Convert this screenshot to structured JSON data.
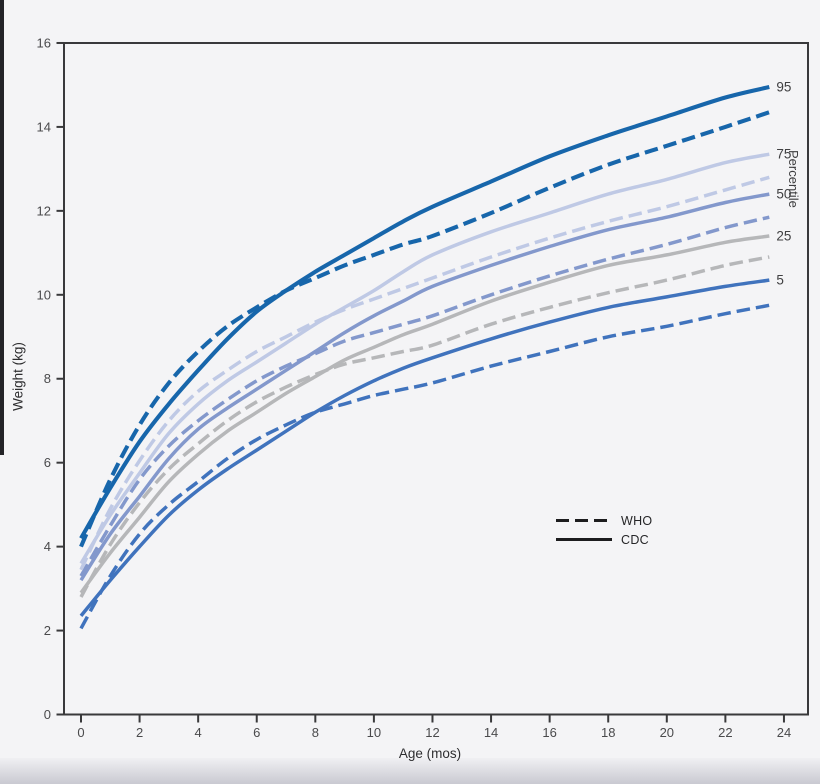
{
  "chart_data": {
    "type": "line",
    "title": "",
    "xlabel": "Age (mos)",
    "ylabel": "Weight (kg)",
    "right_axis_title": "Percentile",
    "x_ticks": [
      0,
      2,
      4,
      6,
      8,
      10,
      12,
      14,
      16,
      18,
      20,
      22,
      24
    ],
    "y_ticks": [
      0,
      2,
      4,
      6,
      8,
      10,
      12,
      14,
      16
    ],
    "xlim": [
      0,
      24.8
    ],
    "ylim": [
      0,
      16
    ],
    "grid": false,
    "legend": [
      {
        "label": "WHO",
        "style": "dashed"
      },
      {
        "label": "CDC",
        "style": "solid"
      }
    ],
    "percentile_labels": [
      "95",
      "75",
      "50",
      "25",
      "5"
    ],
    "x": [
      0,
      1,
      2,
      3,
      4,
      5,
      6,
      7,
      8,
      9,
      10,
      11,
      12,
      14,
      16,
      18,
      20,
      22,
      23.5
    ],
    "series": [
      {
        "name": "WHO 25th",
        "percentile": "25",
        "source": "WHO",
        "style": "dashed",
        "color": "#b6b7b9",
        "values": [
          2.8,
          4.05,
          5.05,
          5.85,
          6.45,
          7.0,
          7.45,
          7.8,
          8.1,
          8.35,
          8.5,
          8.65,
          8.8,
          9.3,
          9.7,
          10.05,
          10.35,
          10.7,
          10.9
        ]
      },
      {
        "name": "CDC 25th",
        "percentile": "25",
        "source": "CDC",
        "style": "solid",
        "color": "#b6b7b9",
        "values": [
          2.9,
          3.85,
          4.7,
          5.55,
          6.2,
          6.75,
          7.2,
          7.65,
          8.05,
          8.45,
          8.75,
          9.05,
          9.3,
          9.85,
          10.3,
          10.7,
          10.95,
          11.25,
          11.4
        ]
      },
      {
        "name": "WHO 50th",
        "percentile": "50",
        "source": "WHO",
        "style": "dashed",
        "color": "#8398cc",
        "values": [
          3.3,
          4.5,
          5.6,
          6.4,
          7.0,
          7.5,
          7.95,
          8.3,
          8.6,
          8.9,
          9.1,
          9.3,
          9.5,
          10.0,
          10.45,
          10.85,
          11.2,
          11.6,
          11.85
        ]
      },
      {
        "name": "CDC 50th",
        "percentile": "50",
        "source": "CDC",
        "style": "solid",
        "color": "#8398cc",
        "values": [
          3.2,
          4.3,
          5.2,
          6.1,
          6.8,
          7.3,
          7.75,
          8.2,
          8.65,
          9.1,
          9.5,
          9.85,
          10.2,
          10.7,
          11.15,
          11.55,
          11.85,
          12.2,
          12.4
        ]
      },
      {
        "name": "WHO 75th",
        "percentile": "75",
        "source": "WHO",
        "style": "dashed",
        "color": "#bfc9e5",
        "values": [
          3.45,
          4.9,
          6.05,
          7.0,
          7.7,
          8.2,
          8.65,
          9.0,
          9.35,
          9.65,
          9.9,
          10.15,
          10.4,
          10.9,
          11.35,
          11.75,
          12.1,
          12.5,
          12.8
        ]
      },
      {
        "name": "CDC 75th",
        "percentile": "75",
        "source": "CDC",
        "style": "solid",
        "color": "#bfc9e5",
        "values": [
          3.6,
          4.75,
          5.75,
          6.7,
          7.4,
          7.95,
          8.4,
          8.85,
          9.3,
          9.7,
          10.1,
          10.55,
          10.95,
          11.5,
          11.95,
          12.4,
          12.75,
          13.15,
          13.35
        ]
      },
      {
        "name": "WHO 5th",
        "percentile": "5",
        "source": "WHO",
        "style": "dashed",
        "color": "#4073bd",
        "values": [
          2.05,
          3.3,
          4.3,
          5.0,
          5.55,
          6.1,
          6.55,
          6.9,
          7.2,
          7.4,
          7.6,
          7.75,
          7.9,
          8.3,
          8.65,
          9.0,
          9.25,
          9.55,
          9.75
        ]
      },
      {
        "name": "CDC 5th",
        "percentile": "5",
        "source": "CDC",
        "style": "solid",
        "color": "#4073bd",
        "values": [
          2.35,
          3.2,
          4.0,
          4.75,
          5.35,
          5.85,
          6.3,
          6.75,
          7.2,
          7.6,
          7.95,
          8.25,
          8.5,
          8.95,
          9.35,
          9.7,
          9.95,
          10.2,
          10.35
        ]
      },
      {
        "name": "WHO 95th",
        "percentile": "95",
        "source": "WHO",
        "style": "dashed",
        "color": "#1766ab",
        "values": [
          4.0,
          5.6,
          6.9,
          7.9,
          8.65,
          9.25,
          9.7,
          10.1,
          10.4,
          10.7,
          10.95,
          11.2,
          11.4,
          11.95,
          12.55,
          13.1,
          13.55,
          14.0,
          14.35
        ]
      },
      {
        "name": "CDC 95th",
        "percentile": "95",
        "source": "CDC",
        "style": "solid",
        "color": "#1766ab",
        "values": [
          4.2,
          5.4,
          6.5,
          7.4,
          8.2,
          8.95,
          9.6,
          10.1,
          10.55,
          10.95,
          11.35,
          11.75,
          12.1,
          12.7,
          13.3,
          13.8,
          14.25,
          14.7,
          14.95
        ]
      }
    ],
    "colors": {
      "p95": "#1766ab",
      "p75": "#bfc9e5",
      "p50": "#8398cc",
      "p25": "#b6b7b9",
      "p5": "#4073bd",
      "axis": "#39393b",
      "tick_text": "#4a4a4c",
      "legend_line": "#1c1c1e",
      "background": "#f4f4f6"
    }
  }
}
